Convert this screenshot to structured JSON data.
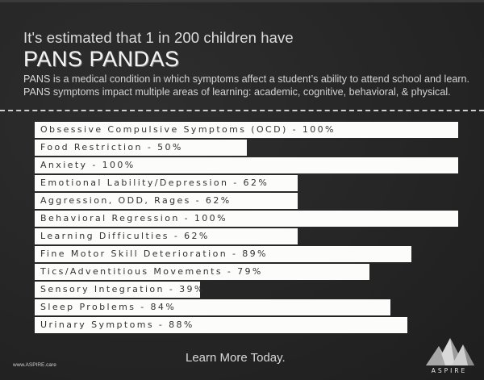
{
  "header": {
    "intro": "It's estimated that 1 in 200 children have",
    "title": "PANS PANDAS",
    "description": "PANS is a medical condition in which symptoms affect a student’s ability to attend school and learn.  PANS symptoms impact multiple areas of learning: academic, cognitive, behavioral, & physical."
  },
  "chart_data": {
    "type": "bar",
    "orientation": "horizontal",
    "title": "PANS PANDAS",
    "xlabel": "",
    "ylabel": "",
    "xlim": [
      0,
      100
    ],
    "grid": false,
    "legend": "none",
    "categories": [
      "Obsessive Compulsive Symptoms (OCD)",
      "Food Restriction",
      "Anxiety",
      "Emotional Lability/Depression",
      "Aggression, ODD, Rages",
      "Behavioral Regression",
      "Learning Difficulties",
      "Fine Motor Skill Deterioration",
      "Tics/Adventitious Movements",
      "Sensory Integration",
      "Sleep Problems",
      "Urinary Symptoms"
    ],
    "values": [
      100,
      50,
      100,
      62,
      62,
      100,
      62,
      89,
      79,
      39,
      84,
      88
    ],
    "labels": [
      "Obsessive Compulsive Symptoms (OCD) - 100%",
      "Food Restriction - 50%",
      "Anxiety - 100%",
      "Emotional Lability/Depression - 62%",
      "Aggression, ODD, Rages - 62%",
      "Behavioral Regression - 100%",
      "Learning Difficulties - 62%",
      "Fine Motor Skill Deterioration - 89%",
      "Tics/Adventitious Movements - 79%",
      "Sensory Integration - 39%",
      "Sleep Problems - 84%",
      "Urinary Symptoms - 88%"
    ]
  },
  "footer": {
    "url": "www.ASPIRE.care",
    "cta": "Learn More Today.",
    "logo_text": "ASPIRE"
  },
  "colors": {
    "background": "#262626",
    "bar": "#fcfcfa",
    "bar_text": "#333333",
    "text": "#e8e8e8"
  }
}
